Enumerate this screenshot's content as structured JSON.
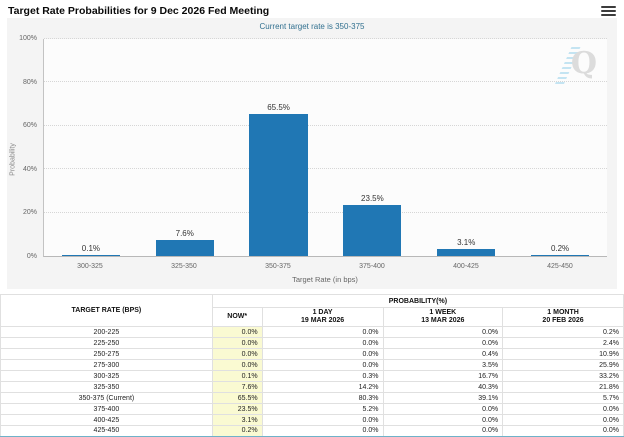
{
  "header": {
    "title": "Target Rate Probabilities for 9 Dec 2026 Fed Meeting",
    "menu_icon": "hamburger-menu-icon"
  },
  "chart": {
    "subtitle": "Current target rate is 350-375",
    "watermark_letter": "Q"
  },
  "chart_data": {
    "type": "bar",
    "title": "Target Rate Probabilities for 9 Dec 2026 Fed Meeting",
    "subtitle": "Current target rate is 350-375",
    "categories": [
      "300-325",
      "325-350",
      "350-375",
      "375-400",
      "400-425",
      "425-450"
    ],
    "values": [
      0.1,
      7.6,
      65.5,
      23.5,
      3.1,
      0.2
    ],
    "value_labels": [
      "0.1%",
      "7.6%",
      "65.5%",
      "23.5%",
      "3.1%",
      "0.2%"
    ],
    "xlabel": "Target Rate (in bps)",
    "ylabel": "Probability",
    "ylim": [
      0,
      100
    ],
    "yticks": [
      "0%",
      "20%",
      "40%",
      "60%",
      "80%",
      "100%"
    ],
    "bar_color": "#2077b4",
    "grid": true,
    "legend": false
  },
  "table": {
    "col1_header": "TARGET RATE (BPS)",
    "group_header": "PROBABILITY(%)",
    "columns": [
      {
        "label": "NOW*",
        "sublabel": ""
      },
      {
        "label": "1 DAY",
        "sublabel": "19 MAR 2026"
      },
      {
        "label": "1 WEEK",
        "sublabel": "13 MAR 2026"
      },
      {
        "label": "1 MONTH",
        "sublabel": "20 FEB 2026"
      }
    ],
    "rows": [
      {
        "rate": "200-225",
        "now": "0.0%",
        "day": "0.0%",
        "week": "0.0%",
        "month": "0.2%"
      },
      {
        "rate": "225-250",
        "now": "0.0%",
        "day": "0.0%",
        "week": "0.0%",
        "month": "2.4%"
      },
      {
        "rate": "250-275",
        "now": "0.0%",
        "day": "0.0%",
        "week": "0.4%",
        "month": "10.9%"
      },
      {
        "rate": "275-300",
        "now": "0.0%",
        "day": "0.0%",
        "week": "3.5%",
        "month": "25.9%"
      },
      {
        "rate": "300-325",
        "now": "0.1%",
        "day": "0.3%",
        "week": "16.7%",
        "month": "33.2%"
      },
      {
        "rate": "325-350",
        "now": "7.6%",
        "day": "14.2%",
        "week": "40.3%",
        "month": "21.8%"
      },
      {
        "rate": "350-375 (Current)",
        "now": "65.5%",
        "day": "80.3%",
        "week": "39.1%",
        "month": "5.7%"
      },
      {
        "rate": "375-400",
        "now": "23.5%",
        "day": "5.2%",
        "week": "0.0%",
        "month": "0.0%"
      },
      {
        "rate": "400-425",
        "now": "3.1%",
        "day": "0.0%",
        "week": "0.0%",
        "month": "0.0%"
      },
      {
        "rate": "425-450",
        "now": "0.2%",
        "day": "0.0%",
        "week": "0.0%",
        "month": "0.0%"
      }
    ]
  }
}
